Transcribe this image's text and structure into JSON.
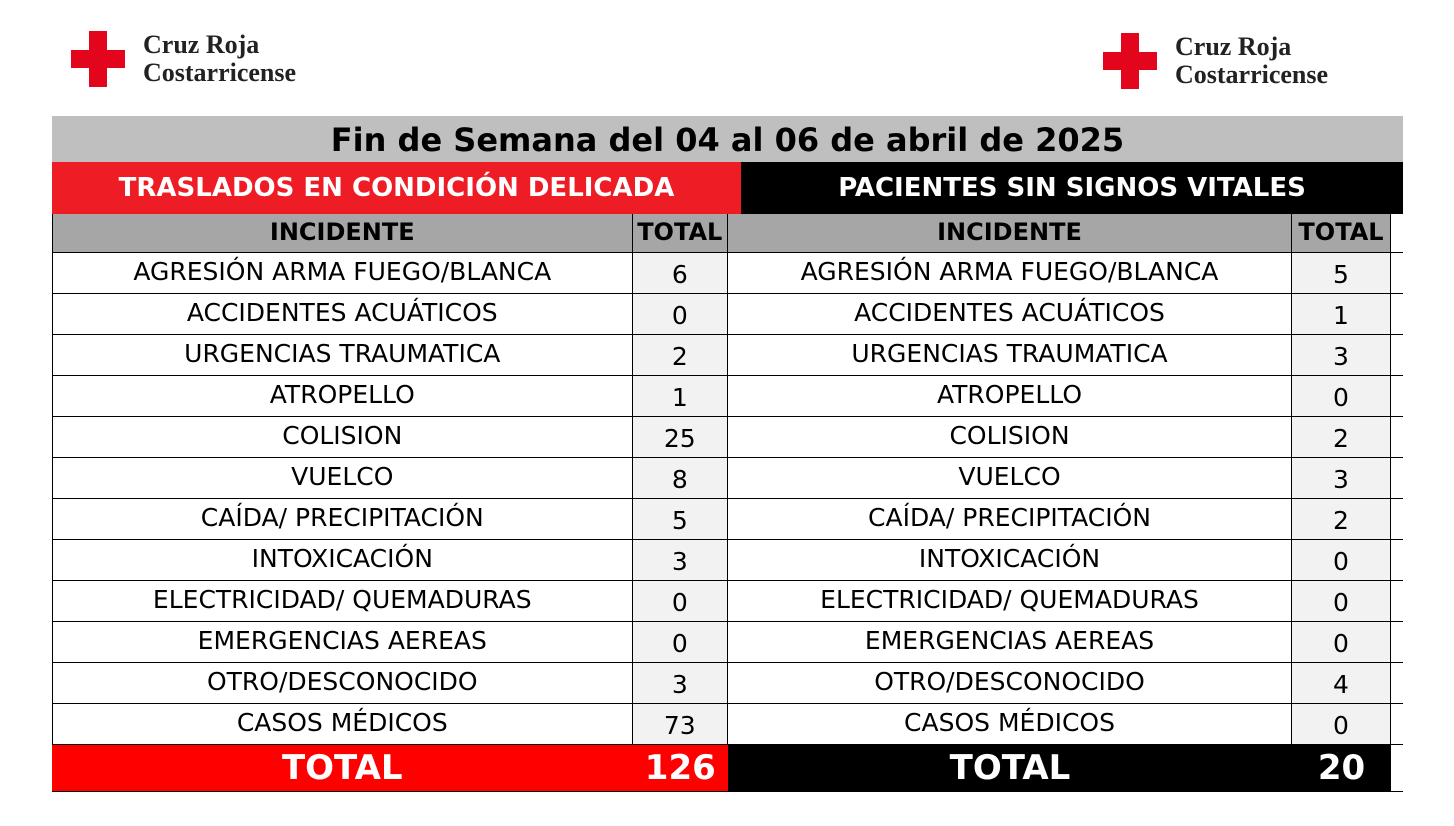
{
  "logo": {
    "line1": "Cruz Roja",
    "line2": "Costarricense",
    "cross_color": "#e3051b"
  },
  "title": "Fin de Semana del 04 al 06 de abril de 2025",
  "left": {
    "section_title": "TRASLADOS EN CONDICIÓN DELICADA",
    "section_color": "#ee1c24",
    "header_incident": "INCIDENTE",
    "header_total": "TOTAL",
    "rows": [
      {
        "incident": "AGRESIÓN ARMA FUEGO/BLANCA",
        "total": "6"
      },
      {
        "incident": "ACCIDENTES ACUÁTICOS",
        "total": "0"
      },
      {
        "incident": "URGENCIAS TRAUMATICA",
        "total": "2"
      },
      {
        "incident": "ATROPELLO",
        "total": "1"
      },
      {
        "incident": "COLISION",
        "total": "25"
      },
      {
        "incident": "VUELCO",
        "total": "8"
      },
      {
        "incident": "CAÍDA/ PRECIPITACIÓN",
        "total": "5"
      },
      {
        "incident": "INTOXICACIÓN",
        "total": "3"
      },
      {
        "incident": "ELECTRICIDAD/ QUEMADURAS",
        "total": "0"
      },
      {
        "incident": "EMERGENCIAS AEREAS",
        "total": "0"
      },
      {
        "incident": "OTRO/DESCONOCIDO",
        "total": "3"
      },
      {
        "incident": "CASOS MÉDICOS",
        "total": "73"
      }
    ],
    "total_label": "TOTAL",
    "total_value": "126",
    "total_color": "#ff0000"
  },
  "right": {
    "section_title": "PACIENTES SIN SIGNOS VITALES",
    "section_color": "#000000",
    "header_incident": "INCIDENTE",
    "header_total": "TOTAL",
    "rows": [
      {
        "incident": "AGRESIÓN ARMA FUEGO/BLANCA",
        "total": "5"
      },
      {
        "incident": "ACCIDENTES ACUÁTICOS",
        "total": "1"
      },
      {
        "incident": "URGENCIAS TRAUMATICA",
        "total": "3"
      },
      {
        "incident": "ATROPELLO",
        "total": "0"
      },
      {
        "incident": "COLISION",
        "total": "2"
      },
      {
        "incident": "VUELCO",
        "total": "3"
      },
      {
        "incident": "CAÍDA/ PRECIPITACIÓN",
        "total": "2"
      },
      {
        "incident": "INTOXICACIÓN",
        "total": "0"
      },
      {
        "incident": "ELECTRICIDAD/ QUEMADURAS",
        "total": "0"
      },
      {
        "incident": "EMERGENCIAS AEREAS",
        "total": "0"
      },
      {
        "incident": "OTRO/DESCONOCIDO",
        "total": "4"
      },
      {
        "incident": "CASOS MÉDICOS",
        "total": "0"
      }
    ],
    "total_label": "TOTAL",
    "total_value": "20",
    "total_color": "#000000"
  }
}
